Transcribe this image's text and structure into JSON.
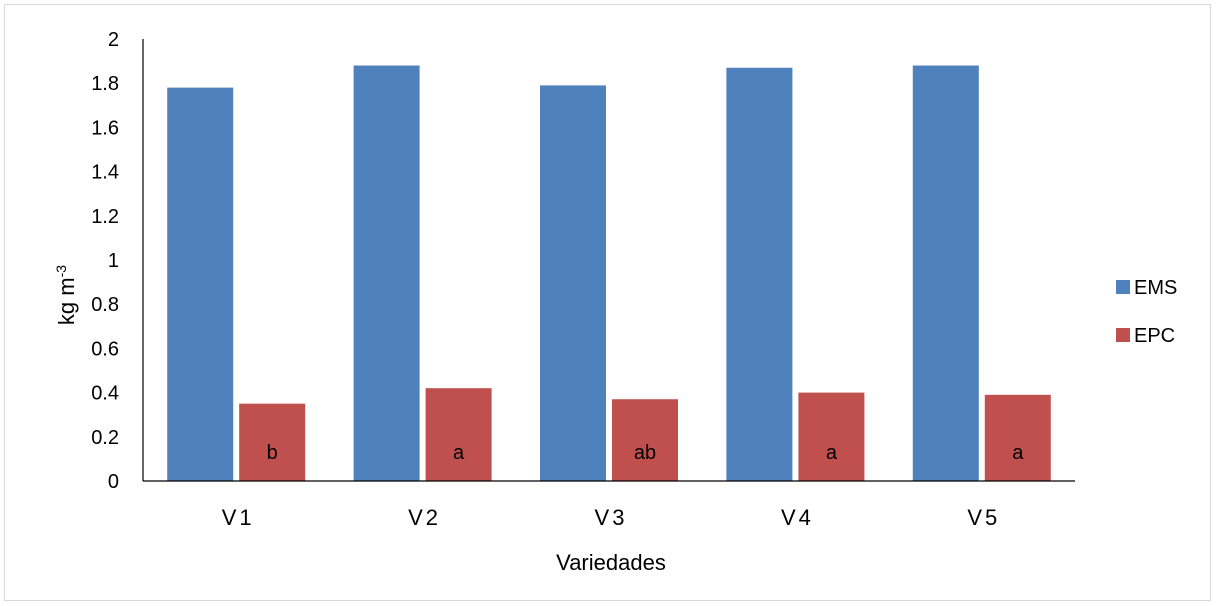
{
  "chart_data": {
    "type": "bar",
    "title": "",
    "xlabel": "Variedades",
    "ylabel": "kg  m",
    "ylabel_superscript": "-3",
    "categories": [
      "V1",
      "V2",
      "V3",
      "V4",
      "V5"
    ],
    "ylim": [
      0,
      2
    ],
    "yticks": [
      "0",
      "0.2",
      "0.4",
      "0.6",
      "0.8",
      "1",
      "1.2",
      "1.4",
      "1.6",
      "1.8",
      "2"
    ],
    "grid": false,
    "legend_position": "right",
    "series": [
      {
        "name": "EMS",
        "color": "#4f81bd",
        "values": [
          1.78,
          1.88,
          1.79,
          1.87,
          1.88
        ]
      },
      {
        "name": "EPC",
        "color": "#c0504d",
        "values": [
          0.35,
          0.42,
          0.37,
          0.4,
          0.39
        ],
        "labels": [
          "b",
          "a",
          "ab",
          "a",
          "a"
        ]
      }
    ]
  }
}
